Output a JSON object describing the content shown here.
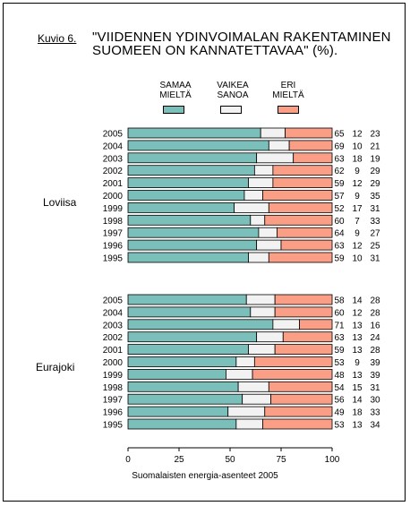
{
  "figure_label": "Kuvio 6.",
  "title_line1": "\"VIIDENNEN YDINVOIMALAN RAKENTAMINEN",
  "title_line2": "SUOMEEN ON KANNATETTAVAA\" (%).",
  "legend": [
    {
      "line1": "SAMAA",
      "line2": "MIELTÄ",
      "color": "#7bbfba"
    },
    {
      "line1": "VAIKEA",
      "line2": "SANOA",
      "color": "#f2f2f2"
    },
    {
      "line1": "ERI",
      "line2": "MIELTÄ",
      "color": "#fa9e86"
    }
  ],
  "footer": "Suomalaisten energia-asenteet 2005",
  "chart_data": {
    "type": "bar",
    "orientation": "horizontal",
    "stacked": true,
    "xlim": [
      0,
      100
    ],
    "x_ticks": [
      0,
      25,
      50,
      75,
      100
    ],
    "series_names": [
      "SAMAA MIELTÄ",
      "VAIKEA SANOA",
      "ERI MIELTÄ"
    ],
    "colors": [
      "#7bbfba",
      "#f2f2f2",
      "#fa9e86"
    ],
    "groups": [
      {
        "name": "Loviisa",
        "rows": [
          {
            "year": "2005",
            "values": [
              65,
              12,
              23
            ]
          },
          {
            "year": "2004",
            "values": [
              69,
              10,
              21
            ]
          },
          {
            "year": "2003",
            "values": [
              63,
              18,
              19
            ]
          },
          {
            "year": "2002",
            "values": [
              62,
              9,
              29
            ]
          },
          {
            "year": "2001",
            "values": [
              59,
              12,
              29
            ]
          },
          {
            "year": "2000",
            "values": [
              57,
              9,
              35
            ]
          },
          {
            "year": "1999",
            "values": [
              52,
              17,
              31
            ]
          },
          {
            "year": "1998",
            "values": [
              60,
              7,
              33
            ]
          },
          {
            "year": "1997",
            "values": [
              64,
              9,
              27
            ]
          },
          {
            "year": "1996",
            "values": [
              63,
              12,
              25
            ]
          },
          {
            "year": "1995",
            "values": [
              59,
              10,
              31
            ]
          }
        ]
      },
      {
        "name": "Eurajoki",
        "rows": [
          {
            "year": "2005",
            "values": [
              58,
              14,
              28
            ]
          },
          {
            "year": "2004",
            "values": [
              60,
              12,
              28
            ]
          },
          {
            "year": "2003",
            "values": [
              71,
              13,
              16
            ]
          },
          {
            "year": "2002",
            "values": [
              63,
              13,
              24
            ]
          },
          {
            "year": "2001",
            "values": [
              59,
              13,
              28
            ]
          },
          {
            "year": "2000",
            "values": [
              53,
              9,
              39
            ]
          },
          {
            "year": "1999",
            "values": [
              48,
              13,
              39
            ]
          },
          {
            "year": "1998",
            "values": [
              54,
              15,
              31
            ]
          },
          {
            "year": "1997",
            "values": [
              56,
              14,
              30
            ]
          },
          {
            "year": "1996",
            "values": [
              49,
              18,
              33
            ]
          },
          {
            "year": "1995",
            "values": [
              53,
              13,
              34
            ]
          }
        ]
      }
    ]
  }
}
